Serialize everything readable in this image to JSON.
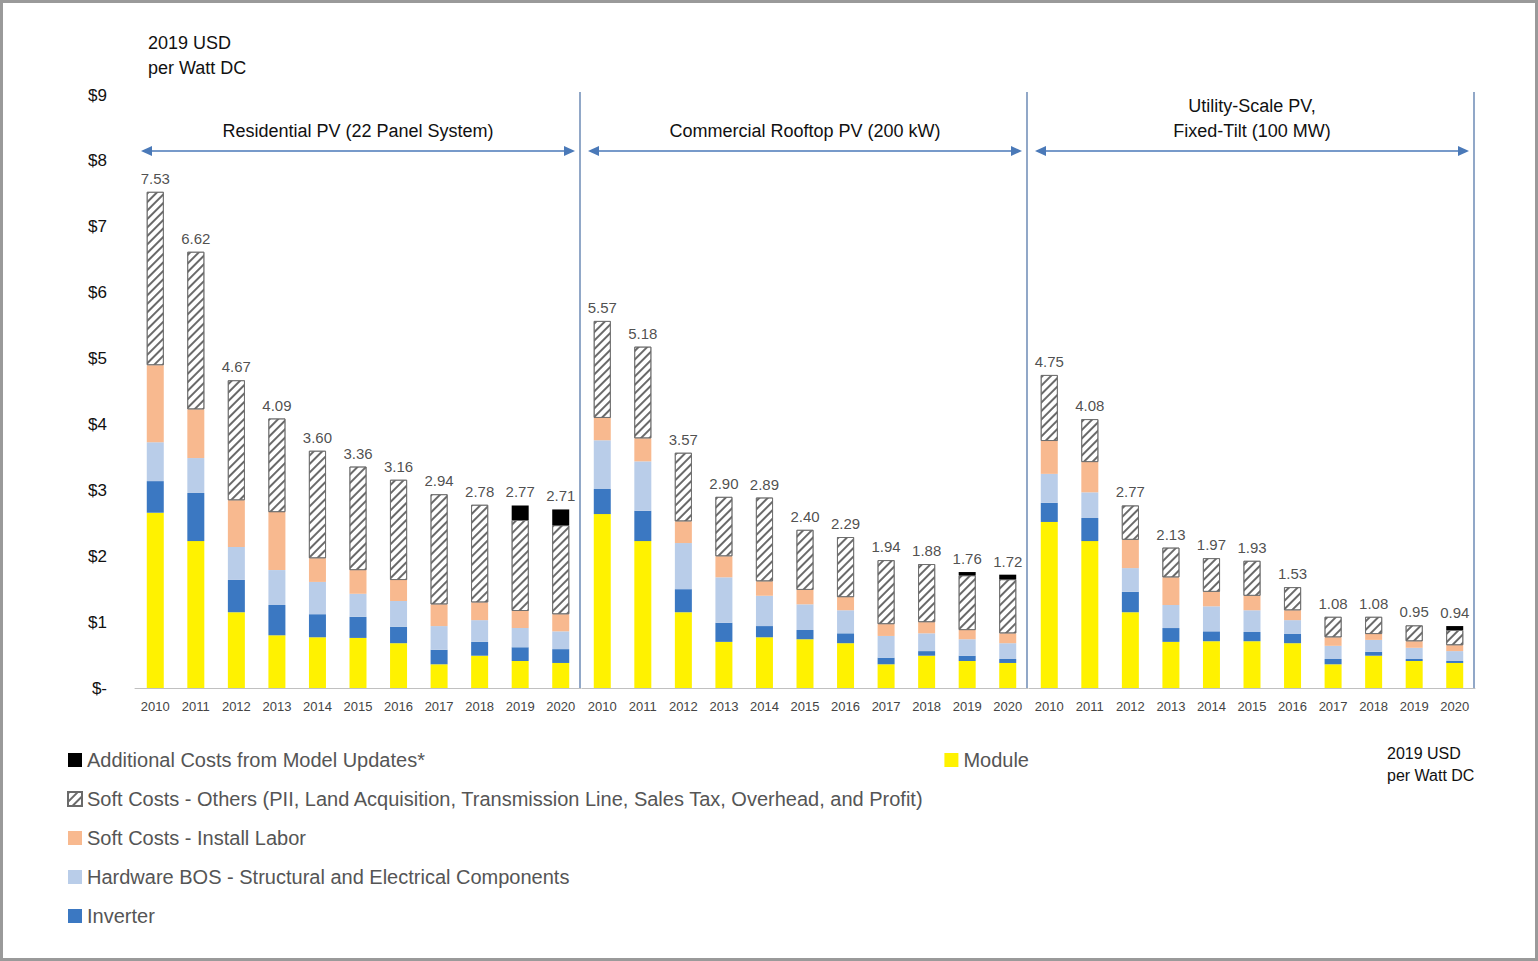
{
  "chart_data": [
    {
      "type": "bar",
      "title": "Residential PV (22 Panel System)",
      "ylabel": "2019 USD\nper Watt DC",
      "categories": [
        "2010",
        "2011",
        "2012",
        "2013",
        "2014",
        "2015",
        "2016",
        "2017",
        "2018",
        "2019",
        "2020"
      ],
      "series": [
        {
          "name": "Module",
          "color": "#fff200",
          "values": [
            2.66,
            2.23,
            1.15,
            0.8,
            0.77,
            0.76,
            0.68,
            0.36,
            0.49,
            0.41,
            0.38
          ]
        },
        {
          "name": "Inverter",
          "color": "#3b78c2",
          "values": [
            0.48,
            0.73,
            0.49,
            0.46,
            0.35,
            0.32,
            0.25,
            0.22,
            0.21,
            0.21,
            0.21
          ]
        },
        {
          "name": "Hardware BOS - Structural and Electrical Components",
          "color": "#b9cde9",
          "values": [
            0.59,
            0.53,
            0.5,
            0.53,
            0.49,
            0.35,
            0.39,
            0.36,
            0.33,
            0.29,
            0.27
          ]
        },
        {
          "name": "Soft Costs - Install Labor",
          "color": "#f8b98f",
          "values": [
            1.17,
            0.74,
            0.71,
            0.88,
            0.36,
            0.36,
            0.32,
            0.33,
            0.27,
            0.26,
            0.26
          ]
        },
        {
          "name": "Soft Costs - Others (PII, Land Acquisition, Transmission Line, Sales Tax, Overhead, and Profit)",
          "color": "#ffffff",
          "marker": "hatch",
          "values": [
            2.63,
            2.39,
            1.82,
            1.42,
            1.63,
            1.57,
            1.52,
            1.67,
            1.48,
            1.38,
            1.35
          ]
        },
        {
          "name": "Additional Costs from Model Updates*",
          "color": "#000000",
          "values": [
            null,
            null,
            null,
            null,
            null,
            null,
            null,
            null,
            null,
            0.22,
            0.24
          ]
        }
      ],
      "totals": [
        7.53,
        6.62,
        4.67,
        4.09,
        3.6,
        3.36,
        3.16,
        2.94,
        2.78,
        2.77,
        2.71
      ],
      "total_labels": [
        "7.53",
        "6.62",
        "4.67",
        "4.09",
        "3.60",
        "3.36",
        "3.16",
        "2.94",
        "2.78",
        "2.77",
        "2.71"
      ],
      "ylim": [
        0,
        9
      ],
      "yticks": [
        {
          "value": 0,
          "label": "$-"
        },
        {
          "value": 1,
          "label": "$1"
        },
        {
          "value": 2,
          "label": "$2"
        },
        {
          "value": 3,
          "label": "$3"
        },
        {
          "value": 4,
          "label": "$4"
        },
        {
          "value": 5,
          "label": "$5"
        },
        {
          "value": 6,
          "label": "$6"
        },
        {
          "value": 7,
          "label": "$7"
        },
        {
          "value": 8,
          "label": "$8"
        },
        {
          "value": 9,
          "label": "$9"
        }
      ],
      "stacked": true,
      "grid": false,
      "legend": "bottom-left"
    },
    {
      "type": "bar",
      "title": "Commercial Rooftop PV (200 kW)",
      "categories": [
        "2010",
        "2011",
        "2012",
        "2013",
        "2014",
        "2015",
        "2016",
        "2017",
        "2018",
        "2019",
        "2020"
      ],
      "series": [
        {
          "name": "Module",
          "color": "#fff200",
          "values": [
            2.64,
            2.23,
            1.15,
            0.7,
            0.77,
            0.74,
            0.68,
            0.36,
            0.49,
            0.41,
            0.38
          ]
        },
        {
          "name": "Inverter",
          "color": "#3b78c2",
          "values": [
            0.38,
            0.46,
            0.35,
            0.29,
            0.17,
            0.14,
            0.15,
            0.1,
            0.07,
            0.08,
            0.06
          ]
        },
        {
          "name": "Hardware BOS - Structural and Electrical Components",
          "color": "#b9cde9",
          "values": [
            0.74,
            0.75,
            0.7,
            0.69,
            0.46,
            0.39,
            0.35,
            0.33,
            0.27,
            0.25,
            0.24
          ]
        },
        {
          "name": "Soft Costs - Install Labor",
          "color": "#f8b98f",
          "values": [
            0.34,
            0.35,
            0.33,
            0.32,
            0.22,
            0.22,
            0.2,
            0.18,
            0.17,
            0.14,
            0.15
          ]
        },
        {
          "name": "Soft Costs - Others (PII, Land Acquisition, Transmission Line, Sales Tax, Overhead, and Profit)",
          "color": "#ffffff",
          "marker": "hatch",
          "values": [
            1.47,
            1.39,
            1.04,
            0.9,
            1.27,
            0.91,
            0.91,
            0.97,
            0.88,
            0.83,
            0.82
          ]
        },
        {
          "name": "Additional Costs from Model Updates*",
          "color": "#000000",
          "values": [
            null,
            null,
            null,
            null,
            null,
            null,
            null,
            null,
            null,
            0.05,
            0.07
          ]
        }
      ],
      "totals": [
        5.57,
        5.18,
        3.57,
        2.9,
        2.89,
        2.4,
        2.29,
        1.94,
        1.88,
        1.76,
        1.72
      ],
      "total_labels": [
        "5.57",
        "5.18",
        "3.57",
        "2.90",
        "2.89",
        "2.40",
        "2.29",
        "1.94",
        "1.88",
        "1.76",
        "1.72"
      ],
      "ylim": [
        0,
        9
      ],
      "yticks": [
        {
          "value": 0,
          "label": "$-"
        },
        {
          "value": 1,
          "label": "$1"
        },
        {
          "value": 2,
          "label": "$2"
        },
        {
          "value": 3,
          "label": "$3"
        },
        {
          "value": 4,
          "label": "$4"
        },
        {
          "value": 5,
          "label": "$5"
        },
        {
          "value": 6,
          "label": "$6"
        },
        {
          "value": 7,
          "label": "$7"
        },
        {
          "value": 8,
          "label": "$8"
        },
        {
          "value": 9,
          "label": "$9"
        }
      ],
      "stacked": true,
      "grid": false,
      "tick_labels": "x"
    },
    {
      "type": "bar",
      "title": "Utility-Scale PV,\nFixed-Tilt (100 MW)",
      "annotation": "2019 USD\nper Watt DC",
      "categories": [
        "2010",
        "2011",
        "2012",
        "2013",
        "2014",
        "2015",
        "2016",
        "2017",
        "2018",
        "2019",
        "2020"
      ],
      "series": [
        {
          "name": "Module",
          "color": "#fff200",
          "values": [
            2.52,
            2.23,
            1.15,
            0.7,
            0.71,
            0.71,
            0.68,
            0.36,
            0.49,
            0.41,
            0.38
          ]
        },
        {
          "name": "Inverter",
          "color": "#3b78c2",
          "values": [
            0.29,
            0.35,
            0.31,
            0.21,
            0.15,
            0.14,
            0.14,
            0.08,
            0.06,
            0.03,
            0.03
          ]
        },
        {
          "name": "Hardware BOS - Structural and Electrical Components",
          "color": "#b9cde9",
          "values": [
            0.44,
            0.39,
            0.36,
            0.35,
            0.38,
            0.33,
            0.21,
            0.2,
            0.18,
            0.17,
            0.15
          ]
        },
        {
          "name": "Soft Costs - Install Labor",
          "color": "#f8b98f",
          "values": [
            0.5,
            0.46,
            0.43,
            0.42,
            0.22,
            0.22,
            0.15,
            0.13,
            0.09,
            0.1,
            0.09
          ]
        },
        {
          "name": "Soft Costs - Others (PII, Land Acquisition, Transmission Line, Sales Tax, Overhead, and Profit)",
          "color": "#ffffff",
          "marker": "hatch",
          "values": [
            1.0,
            0.65,
            0.52,
            0.45,
            0.51,
            0.53,
            0.35,
            0.31,
            0.26,
            0.24,
            0.23
          ]
        },
        {
          "name": "Additional Costs from Model Updates*",
          "color": "#000000",
          "values": [
            null,
            null,
            null,
            null,
            null,
            null,
            null,
            null,
            null,
            null,
            0.06
          ]
        }
      ],
      "totals": [
        4.75,
        4.08,
        2.77,
        2.13,
        1.97,
        1.93,
        1.53,
        1.08,
        1.08,
        0.95,
        0.94
      ],
      "total_labels": [
        "4.75",
        "4.08",
        "2.77",
        "2.13",
        "1.97",
        "1.93",
        "1.53",
        "1.08",
        "1.08",
        "0.95",
        "0.94"
      ],
      "ylim": [
        0,
        9
      ],
      "yticks": [
        {
          "value": 0,
          "label": "$-"
        },
        {
          "value": 1,
          "label": "$1"
        },
        {
          "value": 2,
          "label": "$2"
        },
        {
          "value": 3,
          "label": "$3"
        },
        {
          "value": 4,
          "label": "$4"
        },
        {
          "value": 5,
          "label": "$5"
        },
        {
          "value": 6,
          "label": "$6"
        },
        {
          "value": 7,
          "label": "$7"
        },
        {
          "value": 8,
          "label": "$8"
        },
        {
          "value": 9,
          "label": "$9"
        }
      ],
      "stacked": true,
      "grid": false,
      "tick_labels": "x"
    }
  ]
}
